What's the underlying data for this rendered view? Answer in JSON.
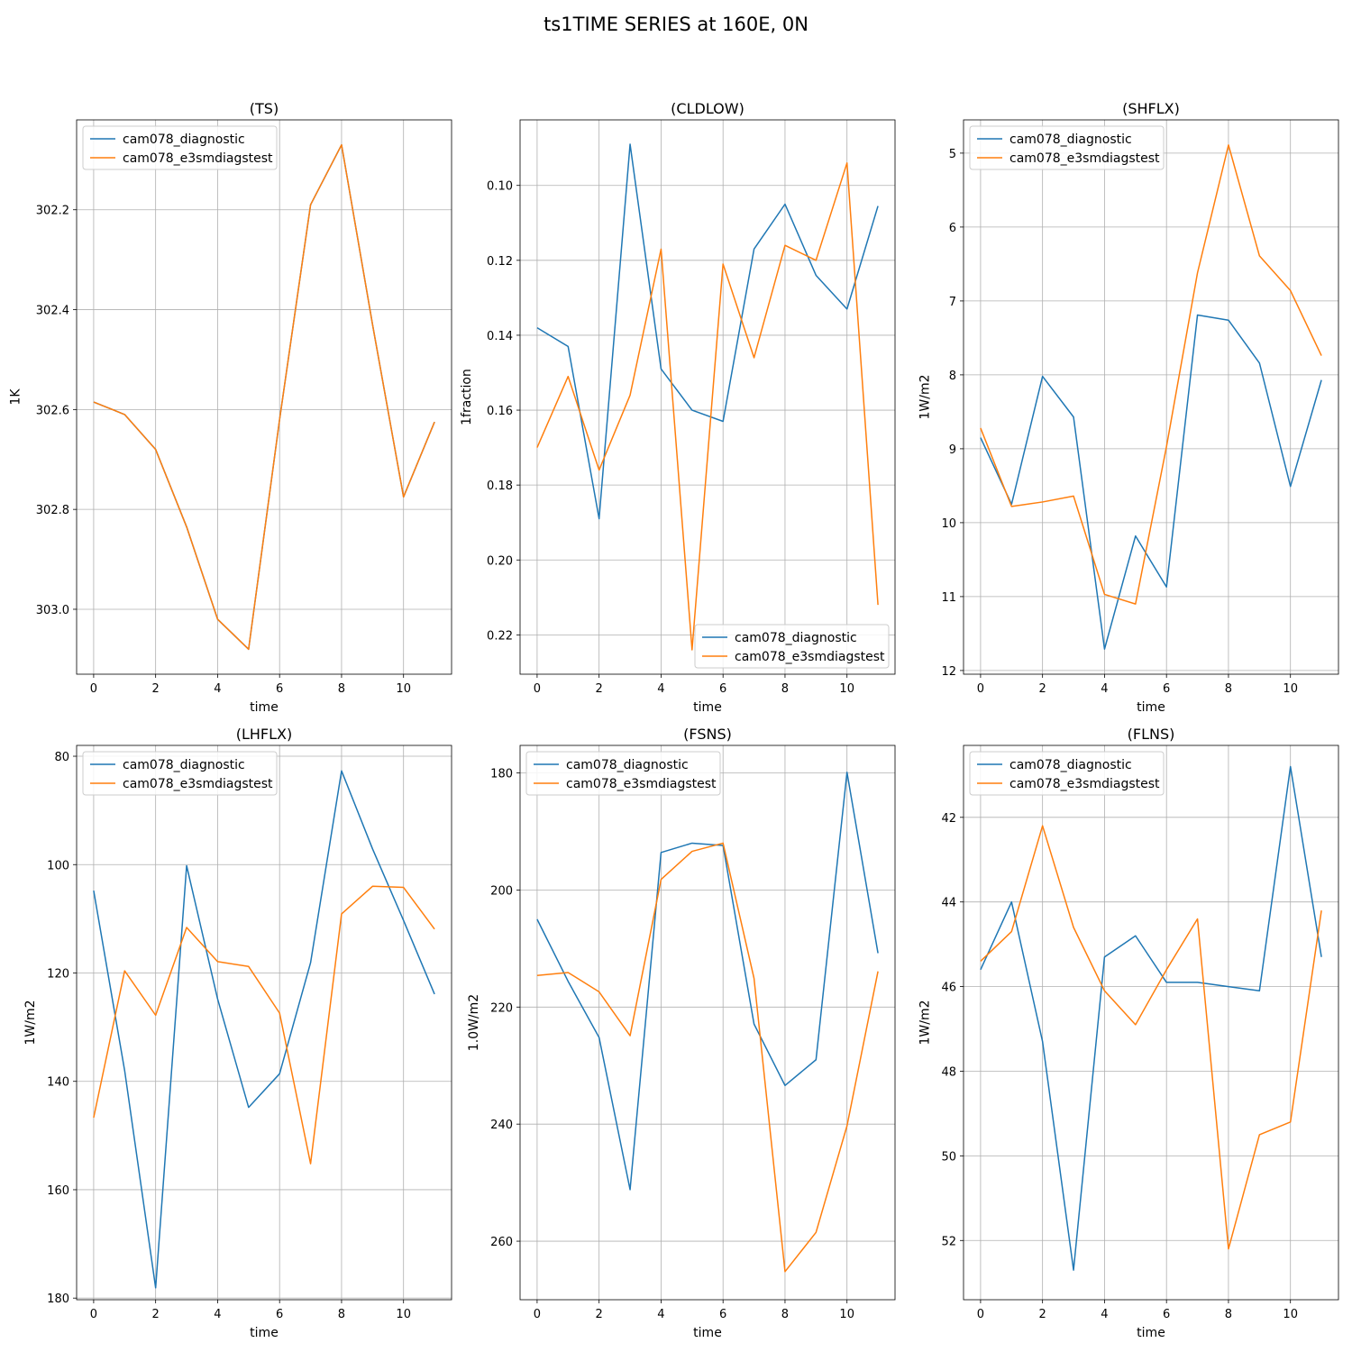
{
  "figure": {
    "title": "ts1TIME SERIES at 160E, 0N"
  },
  "colors": {
    "series0": "#1f77b4",
    "series1": "#ff7f0e",
    "grid": "#b0b0b0",
    "axes": "#000000"
  },
  "chart_data": [
    {
      "type": "line",
      "title": "(TS)",
      "xlabel": "time",
      "ylabel": "1K",
      "y_inverted": true,
      "ylim": [
        302.02,
        303.13
      ],
      "xlim": [
        -0.55,
        11.55
      ],
      "xticks": [
        0,
        2,
        4,
        6,
        8,
        10
      ],
      "yticks": [
        302.2,
        302.4,
        302.6,
        302.8,
        303.0
      ],
      "ytick_labels": [
        "302.2",
        "302.4",
        "302.6",
        "302.8",
        "303.0"
      ],
      "legend_loc": "upper left",
      "grid": true,
      "x": [
        0,
        1,
        2,
        3,
        4,
        5,
        6,
        7,
        8,
        9,
        10,
        11
      ],
      "series": [
        {
          "name": "cam078_diagnostic",
          "values": [
            302.585,
            302.61,
            302.68,
            302.835,
            303.02,
            303.08,
            302.62,
            302.19,
            302.07,
            302.43,
            302.775,
            302.625
          ]
        },
        {
          "name": "cam078_e3smdiagstest",
          "values": [
            302.585,
            302.61,
            302.68,
            302.835,
            303.02,
            303.08,
            302.62,
            302.19,
            302.07,
            302.43,
            302.775,
            302.625
          ]
        }
      ]
    },
    {
      "type": "line",
      "title": "(CLDLOW)",
      "xlabel": "time",
      "ylabel": "1fraction",
      "y_inverted": true,
      "ylim": [
        0.0825,
        0.2305
      ],
      "xlim": [
        -0.55,
        11.55
      ],
      "xticks": [
        0,
        2,
        4,
        6,
        8,
        10
      ],
      "yticks": [
        0.1,
        0.12,
        0.14,
        0.16,
        0.18,
        0.2,
        0.22
      ],
      "ytick_labels": [
        "0.10",
        "0.12",
        "0.14",
        "0.16",
        "0.18",
        "0.20",
        "0.22"
      ],
      "legend_loc": "lower right",
      "grid": true,
      "x": [
        0,
        1,
        2,
        3,
        4,
        5,
        6,
        7,
        8,
        9,
        10,
        11
      ],
      "series": [
        {
          "name": "cam078_diagnostic",
          "values": [
            0.138,
            0.143,
            0.189,
            0.089,
            0.149,
            0.16,
            0.163,
            0.117,
            0.105,
            0.124,
            0.133,
            0.1055
          ]
        },
        {
          "name": "cam078_e3smdiagstest",
          "values": [
            0.17,
            0.151,
            0.176,
            0.156,
            0.117,
            0.224,
            0.121,
            0.146,
            0.116,
            0.12,
            0.094,
            0.212
          ]
        }
      ]
    },
    {
      "type": "line",
      "title": "(SHFLX)",
      "xlabel": "time",
      "ylabel": "1W/m2",
      "y_inverted": true,
      "ylim": [
        4.55,
        12.05
      ],
      "xlim": [
        -0.55,
        11.55
      ],
      "xticks": [
        0,
        2,
        4,
        6,
        8,
        10
      ],
      "yticks": [
        5,
        6,
        7,
        8,
        9,
        10,
        11,
        12
      ],
      "ytick_labels": [
        "5",
        "6",
        "7",
        "8",
        "9",
        "10",
        "11",
        "12"
      ],
      "legend_loc": "upper left",
      "grid": true,
      "x": [
        0,
        1,
        2,
        3,
        4,
        5,
        6,
        7,
        8,
        9,
        10,
        11
      ],
      "series": [
        {
          "name": "cam078_diagnostic",
          "values": [
            8.85,
            9.75,
            8.02,
            8.57,
            11.71,
            10.18,
            10.87,
            7.19,
            7.26,
            7.84,
            9.51,
            8.07
          ]
        },
        {
          "name": "cam078_e3smdiagstest",
          "values": [
            8.72,
            9.78,
            9.72,
            9.64,
            10.97,
            11.1,
            8.97,
            6.62,
            4.89,
            6.39,
            6.86,
            7.74
          ]
        }
      ]
    },
    {
      "type": "line",
      "title": "(LHFLX)",
      "xlabel": "time",
      "ylabel": "1W/m2",
      "y_inverted": true,
      "ylim": [
        78,
        180.3
      ],
      "xlim": [
        -0.55,
        11.55
      ],
      "xticks": [
        0,
        2,
        4,
        6,
        8,
        10
      ],
      "yticks": [
        80,
        100,
        120,
        140,
        160,
        180
      ],
      "ytick_labels": [
        "80",
        "100",
        "120",
        "140",
        "160",
        "180"
      ],
      "legend_loc": "upper left",
      "grid": true,
      "x": [
        0,
        1,
        2,
        3,
        4,
        5,
        6,
        7,
        8,
        9,
        10,
        11
      ],
      "series": [
        {
          "name": "cam078_diagnostic",
          "values": [
            104.8,
            138.0,
            178.1,
            100.2,
            124.8,
            144.8,
            138.6,
            118.1,
            82.7,
            97.1,
            110.3,
            123.9
          ]
        },
        {
          "name": "cam078_e3smdiagstest",
          "values": [
            146.7,
            119.6,
            127.8,
            111.6,
            117.9,
            118.8,
            127.4,
            155.2,
            109.1,
            104.0,
            104.2,
            111.9
          ]
        }
      ]
    },
    {
      "type": "line",
      "title": "(FSNS)",
      "xlabel": "time",
      "ylabel": "1.0W/m2",
      "y_inverted": true,
      "ylim": [
        175.3,
        270.0
      ],
      "xlim": [
        -0.55,
        11.55
      ],
      "xticks": [
        0,
        2,
        4,
        6,
        8,
        10
      ],
      "yticks": [
        180,
        200,
        220,
        240,
        260
      ],
      "ytick_labels": [
        "180",
        "200",
        "220",
        "240",
        "260"
      ],
      "legend_loc": "upper left",
      "grid": true,
      "x": [
        0,
        1,
        2,
        3,
        4,
        5,
        6,
        7,
        8,
        9,
        10,
        11
      ],
      "series": [
        {
          "name": "cam078_diagnostic",
          "values": [
            205.0,
            215.6,
            225.2,
            251.2,
            193.6,
            192.0,
            192.4,
            222.9,
            233.4,
            229.0,
            179.9,
            210.8
          ]
        },
        {
          "name": "cam078_e3smdiagstest",
          "values": [
            214.6,
            214.1,
            217.4,
            224.9,
            198.2,
            193.4,
            192.0,
            215.1,
            265.2,
            258.5,
            240.3,
            213.9
          ]
        }
      ]
    },
    {
      "type": "line",
      "title": "(FLNS)",
      "xlabel": "time",
      "ylabel": "1W/m2",
      "y_inverted": true,
      "ylim": [
        40.3,
        53.4
      ],
      "xlim": [
        -0.55,
        11.55
      ],
      "xticks": [
        0,
        2,
        4,
        6,
        8,
        10
      ],
      "yticks": [
        42,
        44,
        46,
        48,
        50,
        52
      ],
      "ytick_labels": [
        "42",
        "44",
        "46",
        "48",
        "50",
        "52"
      ],
      "legend_loc": "upper left",
      "grid": true,
      "x": [
        0,
        1,
        2,
        3,
        4,
        5,
        6,
        7,
        8,
        9,
        10,
        11
      ],
      "series": [
        {
          "name": "cam078_diagnostic",
          "values": [
            45.6,
            44.0,
            47.3,
            52.7,
            45.3,
            44.8,
            45.9,
            45.9,
            46.0,
            46.1,
            40.8,
            45.3
          ]
        },
        {
          "name": "cam078_e3smdiagstest",
          "values": [
            45.4,
            44.7,
            42.2,
            44.6,
            46.1,
            46.9,
            45.6,
            44.4,
            52.2,
            49.5,
            49.2,
            44.2
          ]
        }
      ]
    }
  ]
}
